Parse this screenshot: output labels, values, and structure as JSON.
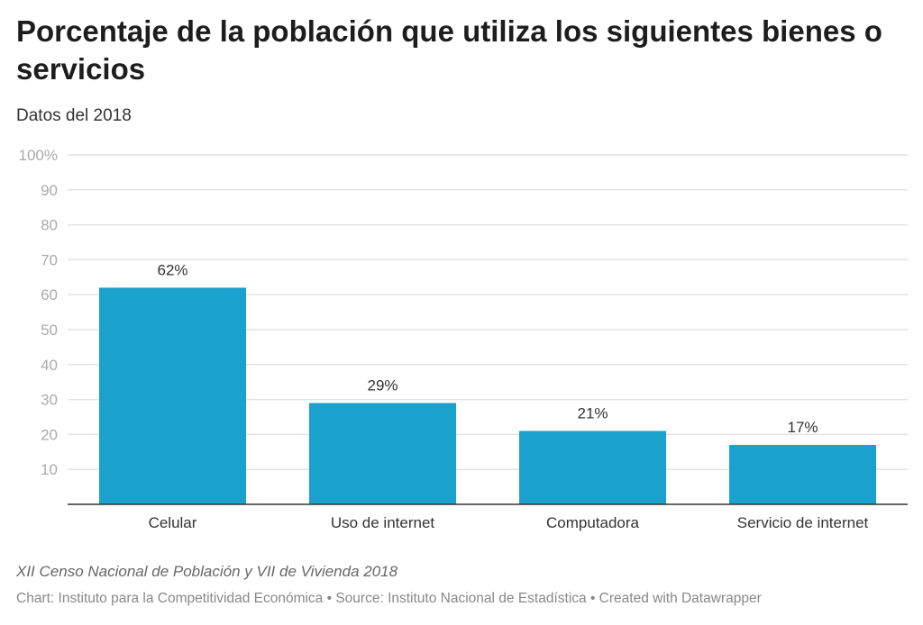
{
  "title": "Porcentaje de la población que utiliza los siguientes bienes o servicios",
  "subtitle": "Datos del 2018",
  "notes": "XII Censo Nacional de Población y VII de Vivienda 2018",
  "byline": "Chart: Instituto para la Competitividad Económica • Source: Instituto Nacional de Estadística • Created with Datawrapper",
  "chart_data": {
    "type": "bar",
    "categories": [
      "Celular",
      "Uso de internet",
      "Computadora",
      "Servicio de internet"
    ],
    "values": [
      62,
      29,
      21,
      17
    ],
    "value_labels": [
      "62%",
      "29%",
      "21%",
      "17%"
    ],
    "ylim": [
      0,
      100
    ],
    "yticks": [
      10,
      20,
      30,
      40,
      50,
      60,
      70,
      80,
      90,
      100
    ],
    "ytick_labels": [
      "10",
      "20",
      "30",
      "40",
      "50",
      "60",
      "70",
      "80",
      "90",
      "100%"
    ],
    "grid": true,
    "bar_color": "#1aa1cd",
    "xlabel": "",
    "ylabel": ""
  }
}
